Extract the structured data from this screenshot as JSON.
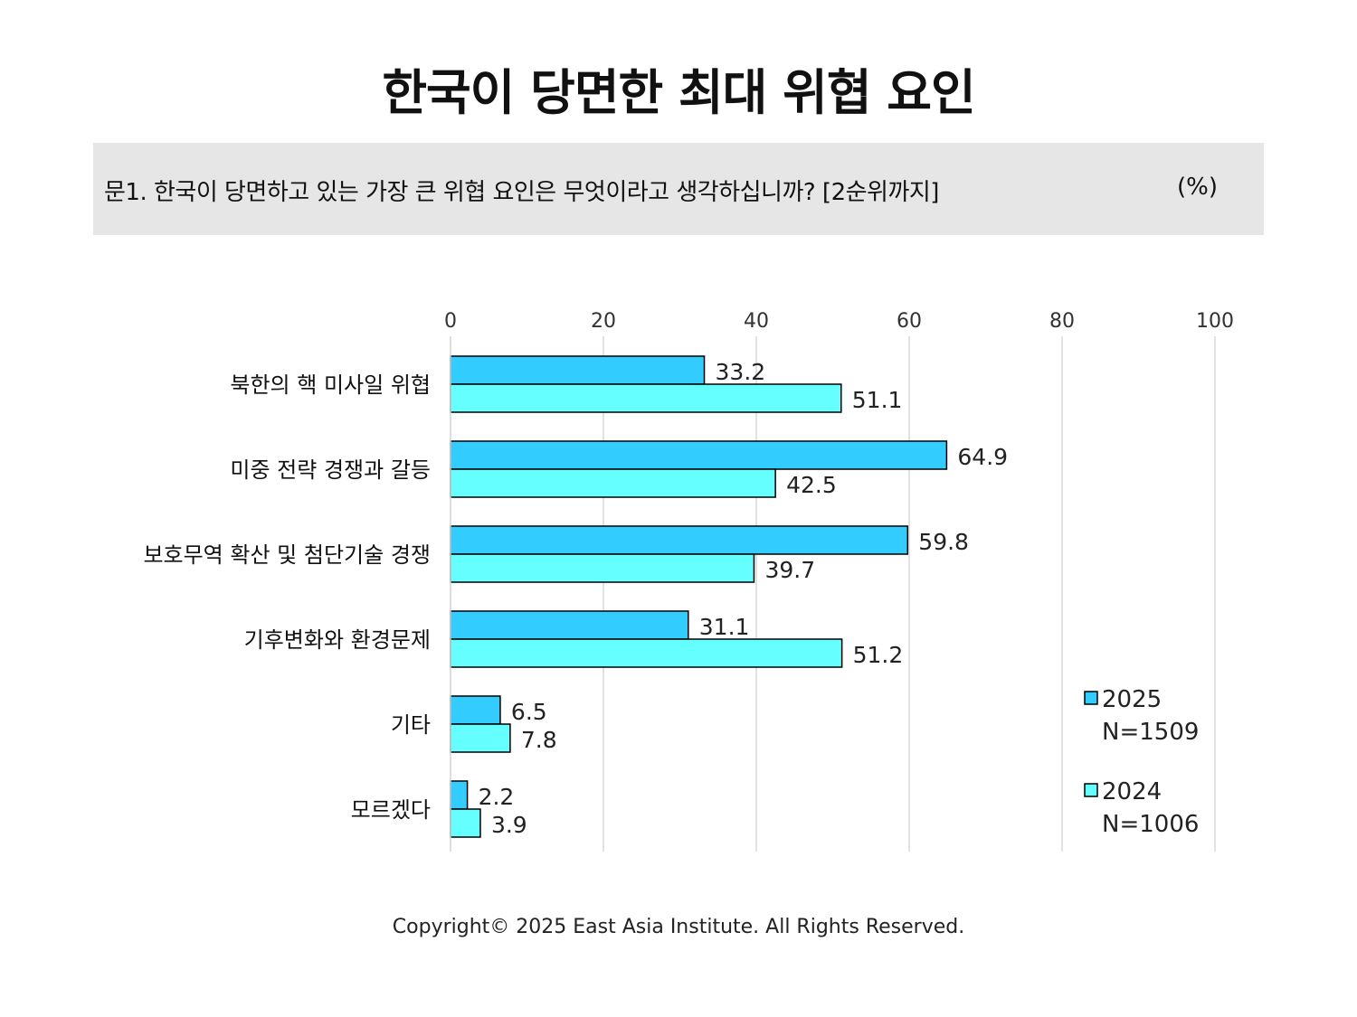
{
  "title": "한국이 당면한 최대 위협 요인",
  "question": {
    "text": "문1. 한국이 당면하고 있는 가장 큰 위협 요인은 무엇이라고 생각하십니까? [2순위까지]",
    "unit": "(%)"
  },
  "colors": {
    "series_2025": "#33ccff",
    "series_2024": "#66ffff",
    "gridline": "#d9d9d9",
    "question_background": "#e7e6e6"
  },
  "chart_data": {
    "type": "bar",
    "orientation": "horizontal",
    "categories": [
      "북한의 핵 미사일 위협",
      "미중 전략 경쟁과 갈등",
      "보호무역 확산 및 첨단기술 경쟁",
      "기후변화와 환경문제",
      "기타",
      "모르겠다"
    ],
    "series": [
      {
        "name": "2025",
        "note": "N=1509",
        "values": [
          33.2,
          64.9,
          59.8,
          31.1,
          6.5,
          2.2
        ]
      },
      {
        "name": "2024",
        "note": "N=1006",
        "values": [
          51.1,
          42.5,
          39.7,
          51.2,
          7.8,
          3.9
        ]
      }
    ],
    "xlim": [
      0,
      100
    ],
    "xticks": [
      "0",
      "20",
      "40",
      "60",
      "80",
      "100"
    ],
    "grid": true,
    "xaxis_position": "top",
    "legend_position": "bottom-right"
  },
  "footer": {
    "copyright": "Copyright© 2025 East Asia Institute. All Rights Reserved."
  }
}
